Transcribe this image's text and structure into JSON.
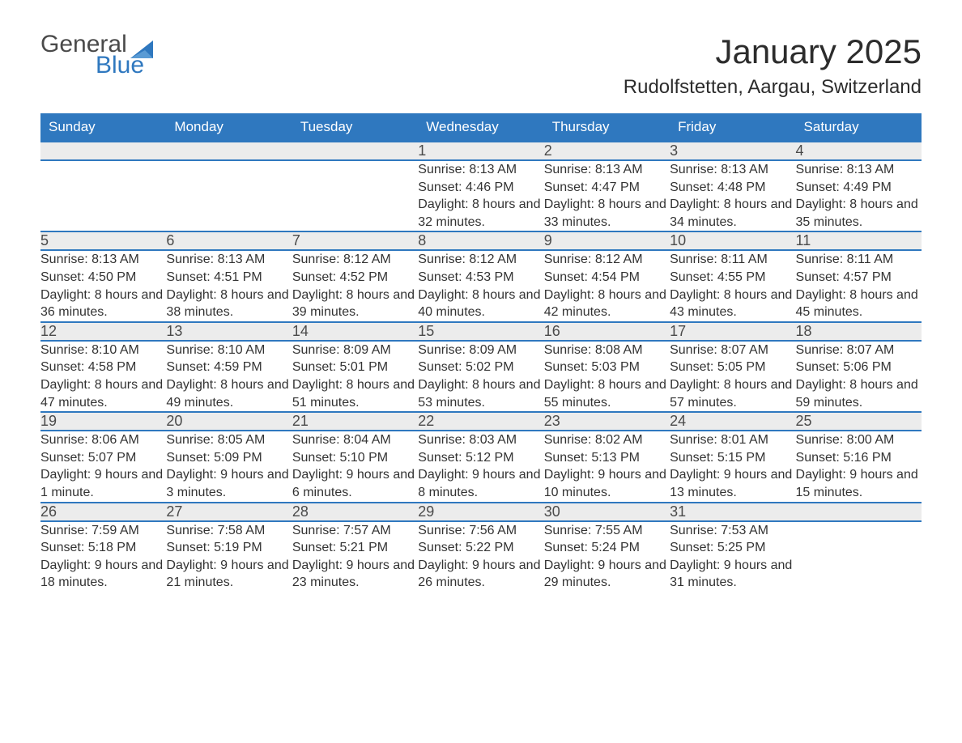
{
  "logo": {
    "word1": "General",
    "word2": "Blue"
  },
  "title": "January 2025",
  "location": "Rudolfstetten, Aargau, Switzerland",
  "colors": {
    "header_bg": "#2f78bf",
    "header_fg": "#ffffff",
    "daynum_bg": "#ececec",
    "row_divider": "#2f78bf",
    "text": "#333333",
    "logo_gray": "#4a4a4a",
    "logo_blue": "#2f78bf",
    "page_bg": "#ffffff"
  },
  "weekdays": [
    "Sunday",
    "Monday",
    "Tuesday",
    "Wednesday",
    "Thursday",
    "Friday",
    "Saturday"
  ],
  "weeks": [
    [
      null,
      null,
      null,
      {
        "n": "1",
        "sunrise": "8:13 AM",
        "sunset": "4:46 PM",
        "daylight": "8 hours and 32 minutes."
      },
      {
        "n": "2",
        "sunrise": "8:13 AM",
        "sunset": "4:47 PM",
        "daylight": "8 hours and 33 minutes."
      },
      {
        "n": "3",
        "sunrise": "8:13 AM",
        "sunset": "4:48 PM",
        "daylight": "8 hours and 34 minutes."
      },
      {
        "n": "4",
        "sunrise": "8:13 AM",
        "sunset": "4:49 PM",
        "daylight": "8 hours and 35 minutes."
      }
    ],
    [
      {
        "n": "5",
        "sunrise": "8:13 AM",
        "sunset": "4:50 PM",
        "daylight": "8 hours and 36 minutes."
      },
      {
        "n": "6",
        "sunrise": "8:13 AM",
        "sunset": "4:51 PM",
        "daylight": "8 hours and 38 minutes."
      },
      {
        "n": "7",
        "sunrise": "8:12 AM",
        "sunset": "4:52 PM",
        "daylight": "8 hours and 39 minutes."
      },
      {
        "n": "8",
        "sunrise": "8:12 AM",
        "sunset": "4:53 PM",
        "daylight": "8 hours and 40 minutes."
      },
      {
        "n": "9",
        "sunrise": "8:12 AM",
        "sunset": "4:54 PM",
        "daylight": "8 hours and 42 minutes."
      },
      {
        "n": "10",
        "sunrise": "8:11 AM",
        "sunset": "4:55 PM",
        "daylight": "8 hours and 43 minutes."
      },
      {
        "n": "11",
        "sunrise": "8:11 AM",
        "sunset": "4:57 PM",
        "daylight": "8 hours and 45 minutes."
      }
    ],
    [
      {
        "n": "12",
        "sunrise": "8:10 AM",
        "sunset": "4:58 PM",
        "daylight": "8 hours and 47 minutes."
      },
      {
        "n": "13",
        "sunrise": "8:10 AM",
        "sunset": "4:59 PM",
        "daylight": "8 hours and 49 minutes."
      },
      {
        "n": "14",
        "sunrise": "8:09 AM",
        "sunset": "5:01 PM",
        "daylight": "8 hours and 51 minutes."
      },
      {
        "n": "15",
        "sunrise": "8:09 AM",
        "sunset": "5:02 PM",
        "daylight": "8 hours and 53 minutes."
      },
      {
        "n": "16",
        "sunrise": "8:08 AM",
        "sunset": "5:03 PM",
        "daylight": "8 hours and 55 minutes."
      },
      {
        "n": "17",
        "sunrise": "8:07 AM",
        "sunset": "5:05 PM",
        "daylight": "8 hours and 57 minutes."
      },
      {
        "n": "18",
        "sunrise": "8:07 AM",
        "sunset": "5:06 PM",
        "daylight": "8 hours and 59 minutes."
      }
    ],
    [
      {
        "n": "19",
        "sunrise": "8:06 AM",
        "sunset": "5:07 PM",
        "daylight": "9 hours and 1 minute."
      },
      {
        "n": "20",
        "sunrise": "8:05 AM",
        "sunset": "5:09 PM",
        "daylight": "9 hours and 3 minutes."
      },
      {
        "n": "21",
        "sunrise": "8:04 AM",
        "sunset": "5:10 PM",
        "daylight": "9 hours and 6 minutes."
      },
      {
        "n": "22",
        "sunrise": "8:03 AM",
        "sunset": "5:12 PM",
        "daylight": "9 hours and 8 minutes."
      },
      {
        "n": "23",
        "sunrise": "8:02 AM",
        "sunset": "5:13 PM",
        "daylight": "9 hours and 10 minutes."
      },
      {
        "n": "24",
        "sunrise": "8:01 AM",
        "sunset": "5:15 PM",
        "daylight": "9 hours and 13 minutes."
      },
      {
        "n": "25",
        "sunrise": "8:00 AM",
        "sunset": "5:16 PM",
        "daylight": "9 hours and 15 minutes."
      }
    ],
    [
      {
        "n": "26",
        "sunrise": "7:59 AM",
        "sunset": "5:18 PM",
        "daylight": "9 hours and 18 minutes."
      },
      {
        "n": "27",
        "sunrise": "7:58 AM",
        "sunset": "5:19 PM",
        "daylight": "9 hours and 21 minutes."
      },
      {
        "n": "28",
        "sunrise": "7:57 AM",
        "sunset": "5:21 PM",
        "daylight": "9 hours and 23 minutes."
      },
      {
        "n": "29",
        "sunrise": "7:56 AM",
        "sunset": "5:22 PM",
        "daylight": "9 hours and 26 minutes."
      },
      {
        "n": "30",
        "sunrise": "7:55 AM",
        "sunset": "5:24 PM",
        "daylight": "9 hours and 29 minutes."
      },
      {
        "n": "31",
        "sunrise": "7:53 AM",
        "sunset": "5:25 PM",
        "daylight": "9 hours and 31 minutes."
      },
      null
    ]
  ],
  "labels": {
    "sunrise": "Sunrise: ",
    "sunset": "Sunset: ",
    "daylight": "Daylight: "
  }
}
